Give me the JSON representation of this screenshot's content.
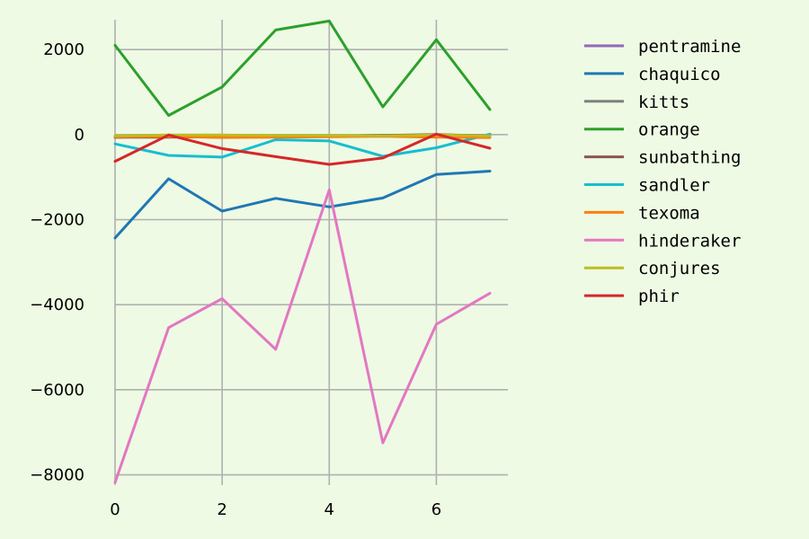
{
  "chart_data": {
    "type": "line",
    "title": "",
    "xlabel": "",
    "ylabel": "",
    "x": [
      0,
      1,
      2,
      3,
      4,
      5,
      6,
      7
    ],
    "xlim": [
      0,
      7
    ],
    "ylim": [
      -8200,
      2700
    ],
    "xticks": [
      0,
      2,
      4,
      6
    ],
    "xtick_labels": [
      "0",
      "2",
      "4",
      "6"
    ],
    "yticks": [
      2000,
      0,
      -2000,
      -4000,
      -6000,
      -8000
    ],
    "ytick_labels": [
      "2000",
      "0",
      "−2000",
      "−4000",
      "−6000",
      "−8000"
    ],
    "grid": true,
    "legend_position": "right",
    "background_color": "#eefae4",
    "series": [
      {
        "name": "pentramine",
        "color": "#9467bd",
        "values": [
          -60,
          -40,
          -30,
          -30,
          -30,
          -20,
          -20,
          -20
        ]
      },
      {
        "name": "chaquico",
        "color": "#1f77b4",
        "values": [
          -2430,
          -1040,
          -1800,
          -1500,
          -1700,
          -1490,
          -940,
          -860
        ]
      },
      {
        "name": "kitts",
        "color": "#7f7f7f",
        "values": [
          -50,
          -30,
          -30,
          -40,
          -40,
          -30,
          -30,
          -30
        ]
      },
      {
        "name": "orange",
        "color": "#2ca02c",
        "values": [
          2100,
          450,
          1120,
          2460,
          2670,
          650,
          2230,
          590
        ]
      },
      {
        "name": "sunbathing",
        "color": "#8c564b",
        "values": [
          -60,
          -60,
          -50,
          -40,
          -30,
          -20,
          0,
          -30
        ]
      },
      {
        "name": "sandler",
        "color": "#17becf",
        "values": [
          -220,
          -490,
          -530,
          -120,
          -150,
          -510,
          -310,
          10
        ]
      },
      {
        "name": "texoma",
        "color": "#ff7f0e",
        "values": [
          -50,
          -40,
          -70,
          -60,
          -50,
          -40,
          -60,
          -70
        ]
      },
      {
        "name": "hinderaker",
        "color": "#e377c2",
        "values": [
          -8180,
          -4540,
          -3860,
          -5050,
          -1300,
          -7250,
          -4460,
          -3730
        ]
      },
      {
        "name": "conjures",
        "color": "#bcbd22",
        "values": [
          -30,
          -10,
          -10,
          -20,
          -20,
          -30,
          -10,
          -30
        ]
      },
      {
        "name": "phir",
        "color": "#d62728",
        "values": [
          -630,
          -10,
          -330,
          -520,
          -700,
          -550,
          10,
          -320
        ]
      }
    ]
  }
}
